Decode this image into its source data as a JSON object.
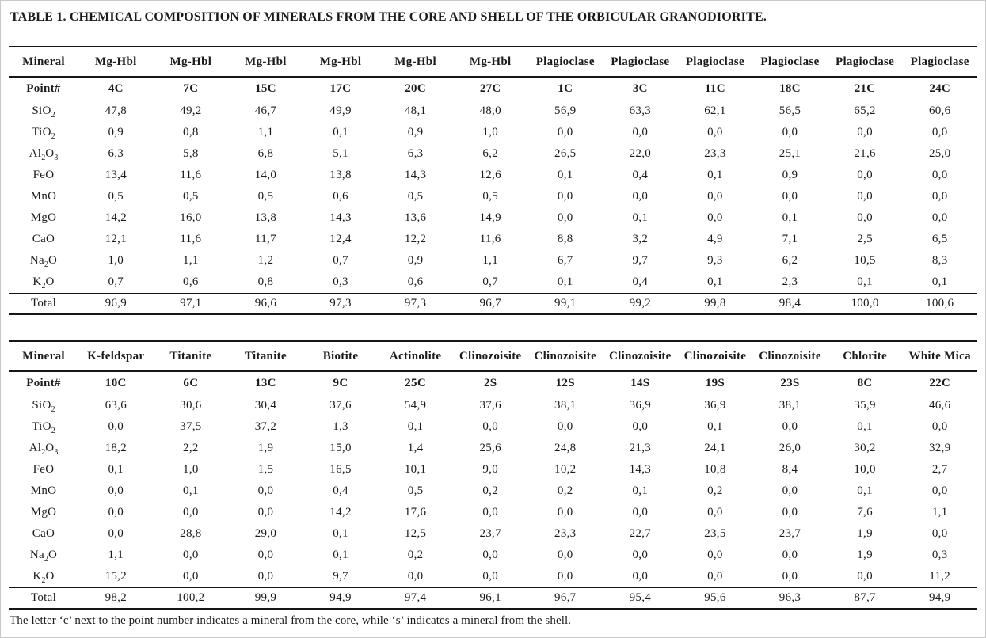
{
  "title": "TABLE 1. CHEMICAL COMPOSITION OF MINERALS FROM THE CORE AND SHELL OF THE ORBICULAR GRANODIORITE.",
  "footnote": "The letter ‘c’ next to the point number indicates a mineral from the core, while ‘s’ indicates a mineral from the shell.",
  "tables": [
    {
      "mineral_label": "Mineral",
      "point_label": "Point#",
      "columns": [
        {
          "mineral": "Mg-Hbl",
          "point": "4C"
        },
        {
          "mineral": "Mg-Hbl",
          "point": "7C"
        },
        {
          "mineral": "Mg-Hbl",
          "point": "15C"
        },
        {
          "mineral": "Mg-Hbl",
          "point": "17C"
        },
        {
          "mineral": "Mg-Hbl",
          "point": "20C"
        },
        {
          "mineral": "Mg-Hbl",
          "point": "27C"
        },
        {
          "mineral": "Plagioclase",
          "point": "1C"
        },
        {
          "mineral": "Plagioclase",
          "point": "3C"
        },
        {
          "mineral": "Plagioclase",
          "point": "11C"
        },
        {
          "mineral": "Plagioclase",
          "point": "18C"
        },
        {
          "mineral": "Plagioclase",
          "point": "21C"
        },
        {
          "mineral": "Plagioclase",
          "point": "24C"
        }
      ],
      "rows": [
        {
          "label": "SiO_2",
          "values": [
            "47,8",
            "49,2",
            "46,7",
            "49,9",
            "48,1",
            "48,0",
            "56,9",
            "63,3",
            "62,1",
            "56,5",
            "65,2",
            "60,6"
          ]
        },
        {
          "label": "TiO_2",
          "values": [
            "0,9",
            "0,8",
            "1,1",
            "0,1",
            "0,9",
            "1,0",
            "0,0",
            "0,0",
            "0,0",
            "0,0",
            "0,0",
            "0,0"
          ]
        },
        {
          "label": "Al_2O_3",
          "values": [
            "6,3",
            "5,8",
            "6,8",
            "5,1",
            "6,3",
            "6,2",
            "26,5",
            "22,0",
            "23,3",
            "25,1",
            "21,6",
            "25,0"
          ]
        },
        {
          "label": "FeO",
          "values": [
            "13,4",
            "11,6",
            "14,0",
            "13,8",
            "14,3",
            "12,6",
            "0,1",
            "0,4",
            "0,1",
            "0,9",
            "0,0",
            "0,0"
          ]
        },
        {
          "label": "MnO",
          "values": [
            "0,5",
            "0,5",
            "0,5",
            "0,6",
            "0,5",
            "0,5",
            "0,0",
            "0,0",
            "0,0",
            "0,0",
            "0,0",
            "0,0"
          ]
        },
        {
          "label": "MgO",
          "values": [
            "14,2",
            "16,0",
            "13,8",
            "14,3",
            "13,6",
            "14,9",
            "0,0",
            "0,1",
            "0,0",
            "0,1",
            "0,0",
            "0,0"
          ]
        },
        {
          "label": "CaO",
          "values": [
            "12,1",
            "11,6",
            "11,7",
            "12,4",
            "12,2",
            "11,6",
            "8,8",
            "3,2",
            "4,9",
            "7,1",
            "2,5",
            "6,5"
          ]
        },
        {
          "label": "Na_2O",
          "values": [
            "1,0",
            "1,1",
            "1,2",
            "0,7",
            "0,9",
            "1,1",
            "6,7",
            "9,7",
            "9,3",
            "6,2",
            "10,5",
            "8,3"
          ]
        },
        {
          "label": "K_2O",
          "values": [
            "0,7",
            "0,6",
            "0,8",
            "0,3",
            "0,6",
            "0,7",
            "0,1",
            "0,4",
            "0,1",
            "2,3",
            "0,1",
            "0,1"
          ]
        },
        {
          "label": "Total",
          "total": true,
          "values": [
            "96,9",
            "97,1",
            "96,6",
            "97,3",
            "97,3",
            "96,7",
            "99,1",
            "99,2",
            "99,8",
            "98,4",
            "100,0",
            "100,6"
          ]
        }
      ]
    },
    {
      "mineral_label": "Mineral",
      "point_label": "Point#",
      "columns": [
        {
          "mineral": "K-feldspar",
          "point": "10C"
        },
        {
          "mineral": "Titanite",
          "point": "6C"
        },
        {
          "mineral": "Titanite",
          "point": "13C"
        },
        {
          "mineral": "Biotite",
          "point": "9C"
        },
        {
          "mineral": "Actinolite",
          "point": "25C"
        },
        {
          "mineral": "Clinozoisite",
          "point": "2S"
        },
        {
          "mineral": "Clinozoisite",
          "point": "12S"
        },
        {
          "mineral": "Clinozoisite",
          "point": "14S"
        },
        {
          "mineral": "Clinozoisite",
          "point": "19S"
        },
        {
          "mineral": "Clinozoisite",
          "point": "23S"
        },
        {
          "mineral": "Chlorite",
          "point": "8C"
        },
        {
          "mineral": "White Mica",
          "point": "22C"
        }
      ],
      "rows": [
        {
          "label": "SiO_2",
          "values": [
            "63,6",
            "30,6",
            "30,4",
            "37,6",
            "54,9",
            "37,6",
            "38,1",
            "36,9",
            "36,9",
            "38,1",
            "35,9",
            "46,6"
          ]
        },
        {
          "label": "TiO_2",
          "values": [
            "0,0",
            "37,5",
            "37,2",
            "1,3",
            "0,1",
            "0,0",
            "0,0",
            "0,0",
            "0,1",
            "0,0",
            "0,1",
            "0,0"
          ]
        },
        {
          "label": "Al_2O_3",
          "values": [
            "18,2",
            "2,2",
            "1,9",
            "15,0",
            "1,4",
            "25,6",
            "24,8",
            "21,3",
            "24,1",
            "26,0",
            "30,2",
            "32,9"
          ]
        },
        {
          "label": "FeO",
          "values": [
            "0,1",
            "1,0",
            "1,5",
            "16,5",
            "10,1",
            "9,0",
            "10,2",
            "14,3",
            "10,8",
            "8,4",
            "10,0",
            "2,7"
          ]
        },
        {
          "label": "MnO",
          "values": [
            "0,0",
            "0,1",
            "0,0",
            "0,4",
            "0,5",
            "0,2",
            "0,2",
            "0,1",
            "0,2",
            "0,0",
            "0,1",
            "0,0"
          ]
        },
        {
          "label": "MgO",
          "values": [
            "0,0",
            "0,0",
            "0,0",
            "14,2",
            "17,6",
            "0,0",
            "0,0",
            "0,0",
            "0,0",
            "0,0",
            "7,6",
            "1,1"
          ]
        },
        {
          "label": "CaO",
          "values": [
            "0,0",
            "28,8",
            "29,0",
            "0,1",
            "12,5",
            "23,7",
            "23,3",
            "22,7",
            "23,5",
            "23,7",
            "1,9",
            "0,0"
          ]
        },
        {
          "label": "Na_2O",
          "values": [
            "1,1",
            "0,0",
            "0,0",
            "0,1",
            "0,2",
            "0,0",
            "0,0",
            "0,0",
            "0,0",
            "0,0",
            "1,9",
            "0,3"
          ]
        },
        {
          "label": "K_2O",
          "values": [
            "15,2",
            "0,0",
            "0,0",
            "9,7",
            "0,0",
            "0,0",
            "0,0",
            "0,0",
            "0,0",
            "0,0",
            "0,0",
            "11,2"
          ]
        },
        {
          "label": "Total",
          "total": true,
          "values": [
            "98,2",
            "100,2",
            "99,9",
            "94,9",
            "97,4",
            "96,1",
            "96,7",
            "95,4",
            "95,6",
            "96,3",
            "87,7",
            "94,9"
          ]
        }
      ]
    }
  ]
}
